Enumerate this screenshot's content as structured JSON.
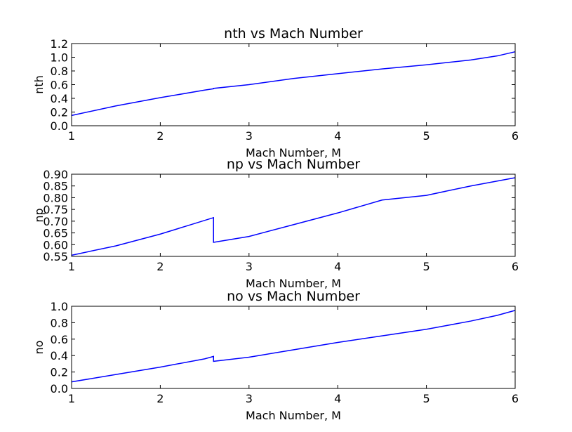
{
  "chart_data": [
    {
      "type": "line",
      "title": "nth vs Mach Number",
      "xlabel": "Mach Number, M",
      "ylabel": "nth",
      "xlim": [
        1,
        6
      ],
      "ylim": [
        0.0,
        1.2
      ],
      "xticks": [
        "1",
        "2",
        "3",
        "4",
        "5",
        "6"
      ],
      "yticks": [
        "0.0",
        "0.2",
        "0.4",
        "0.6",
        "0.8",
        "1.0",
        "1.2"
      ],
      "grid": false,
      "color": "#0000ff",
      "series": [
        {
          "x": [
            1.0,
            1.5,
            2.0,
            2.5,
            2.6,
            2.6,
            3.0,
            3.5,
            4.0,
            4.5,
            5.0,
            5.5,
            5.8,
            6.0
          ],
          "y": [
            0.15,
            0.29,
            0.41,
            0.52,
            0.54,
            0.545,
            0.6,
            0.69,
            0.76,
            0.83,
            0.89,
            0.96,
            1.02,
            1.08
          ]
        }
      ]
    },
    {
      "type": "line",
      "title": "np vs Mach Number",
      "xlabel": "Mach Number, M",
      "ylabel": "np",
      "xlim": [
        1,
        6
      ],
      "ylim": [
        0.55,
        0.9
      ],
      "xticks": [
        "1",
        "2",
        "3",
        "4",
        "5",
        "6"
      ],
      "yticks": [
        "0.55",
        "0.60",
        "0.65",
        "0.70",
        "0.75",
        "0.80",
        "0.85",
        "0.90"
      ],
      "grid": false,
      "color": "#0000ff",
      "series": [
        {
          "x": [
            1.0,
            1.5,
            2.0,
            2.3,
            2.6,
            2.6,
            3.0,
            3.5,
            4.0,
            4.5,
            5.0,
            5.5,
            6.0
          ],
          "y": [
            0.555,
            0.595,
            0.645,
            0.68,
            0.715,
            0.61,
            0.635,
            0.685,
            0.735,
            0.79,
            0.81,
            0.85,
            0.885
          ]
        }
      ]
    },
    {
      "type": "line",
      "title": "no vs Mach Number",
      "xlabel": "Mach Number, M",
      "ylabel": "no",
      "xlim": [
        1,
        6
      ],
      "ylim": [
        0.0,
        1.0
      ],
      "xticks": [
        "1",
        "2",
        "3",
        "4",
        "5",
        "6"
      ],
      "yticks": [
        "0.0",
        "0.2",
        "0.4",
        "0.6",
        "0.8",
        "1.0"
      ],
      "grid": false,
      "color": "#0000ff",
      "series": [
        {
          "x": [
            1.0,
            1.5,
            2.0,
            2.5,
            2.6,
            2.6,
            3.0,
            3.5,
            4.0,
            4.5,
            5.0,
            5.5,
            5.8,
            6.0
          ],
          "y": [
            0.08,
            0.17,
            0.26,
            0.36,
            0.39,
            0.33,
            0.38,
            0.47,
            0.56,
            0.64,
            0.72,
            0.82,
            0.89,
            0.95
          ]
        }
      ]
    }
  ]
}
